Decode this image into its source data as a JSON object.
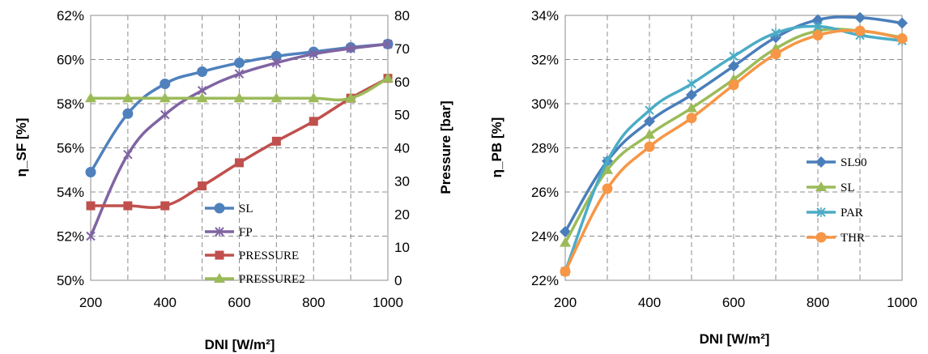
{
  "chart_data": [
    {
      "type": "line",
      "x": [
        200,
        300,
        400,
        500,
        600,
        700,
        800,
        900,
        1000
      ],
      "xlabel": "DNI [W/m²]",
      "xticks": [
        "200",
        "400",
        "600",
        "800",
        "1000"
      ],
      "xlim": [
        200,
        1000
      ],
      "ylabel": "η_SF [%]",
      "ylim": [
        50,
        62
      ],
      "yticks": [
        "50%",
        "52%",
        "54%",
        "56%",
        "58%",
        "60%",
        "62%"
      ],
      "y2label": "Pressure [bar]",
      "y2lim": [
        0,
        80
      ],
      "y2ticks": [
        "0",
        "10",
        "20",
        "30",
        "40",
        "50",
        "60",
        "70",
        "80"
      ],
      "grid": true,
      "legend_position": "bottom-right",
      "series": [
        {
          "name": "SL",
          "axis": "left",
          "marker": "circle",
          "color": "#4F81BD",
          "values": [
            54.9,
            57.55,
            58.9,
            59.45,
            59.85,
            60.15,
            60.35,
            60.55,
            60.7
          ]
        },
        {
          "name": "FP",
          "axis": "left",
          "marker": "x",
          "color": "#8064A2",
          "values": [
            52.0,
            55.7,
            57.5,
            58.6,
            59.35,
            59.85,
            60.25,
            60.5,
            60.7
          ]
        },
        {
          "name": "PRESSURE",
          "axis": "right",
          "marker": "square",
          "color": "#C0504D",
          "values": [
            22.5,
            22.5,
            22.5,
            28.5,
            35.5,
            42,
            48,
            55,
            61
          ]
        },
        {
          "name": "PRESSURE2",
          "axis": "right",
          "marker": "triangle",
          "color": "#9BBB59",
          "values": [
            55,
            55,
            55,
            55,
            55,
            55,
            55,
            55,
            61
          ]
        }
      ]
    },
    {
      "type": "line",
      "x": [
        200,
        300,
        400,
        500,
        600,
        700,
        800,
        900,
        1000
      ],
      "xlabel": "DNI [W/m²]",
      "xticks": [
        "200",
        "400",
        "600",
        "800",
        "1000"
      ],
      "xlim": [
        200,
        1000
      ],
      "ylabel": "η_PB [%]",
      "ylim": [
        22,
        34
      ],
      "yticks": [
        "22%",
        "24%",
        "26%",
        "28%",
        "30%",
        "32%",
        "34%"
      ],
      "grid": true,
      "legend_position": "right",
      "series": [
        {
          "name": "SL90",
          "marker": "diamond",
          "color": "#4A7EBB",
          "values": [
            24.2,
            27.4,
            29.2,
            30.4,
            31.7,
            33.0,
            33.8,
            33.9,
            33.65
          ]
        },
        {
          "name": "SL",
          "marker": "triangle",
          "color": "#9BBB59",
          "values": [
            23.7,
            27.0,
            28.6,
            29.8,
            31.1,
            32.5,
            33.3,
            33.3,
            33.0
          ]
        },
        {
          "name": "PAR",
          "marker": "x",
          "color": "#4BACC6",
          "values": [
            22.4,
            27.4,
            29.7,
            30.9,
            32.15,
            33.2,
            33.5,
            33.1,
            32.85
          ]
        },
        {
          "name": "THR",
          "marker": "circle",
          "color": "#F79646",
          "values": [
            22.4,
            26.15,
            28.05,
            29.35,
            30.85,
            32.25,
            33.1,
            33.3,
            32.95
          ]
        }
      ]
    }
  ]
}
